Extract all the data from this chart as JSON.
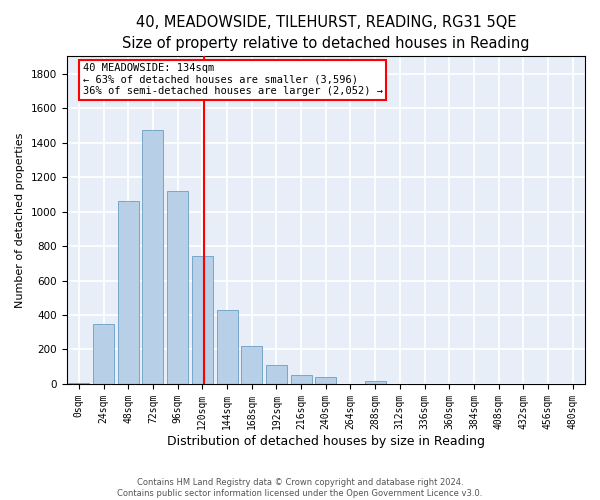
{
  "title1": "40, MEADOWSIDE, TILEHURST, READING, RG31 5QE",
  "title2": "Size of property relative to detached houses in Reading",
  "xlabel": "Distribution of detached houses by size in Reading",
  "ylabel": "Number of detached properties",
  "categories": [
    "0sqm",
    "24sqm",
    "48sqm",
    "72sqm",
    "96sqm",
    "120sqm",
    "144sqm",
    "168sqm",
    "192sqm",
    "216sqm",
    "240sqm",
    "264sqm",
    "288sqm",
    "312sqm",
    "336sqm",
    "360sqm",
    "384sqm",
    "408sqm",
    "432sqm",
    "456sqm",
    "480sqm"
  ],
  "values": [
    5,
    350,
    1060,
    1470,
    1120,
    740,
    430,
    220,
    110,
    50,
    40,
    0,
    20,
    0,
    0,
    0,
    0,
    0,
    0,
    0,
    0
  ],
  "bar_color": "#b8cfe8",
  "bar_edge_color": "#6a9ec5",
  "vline_color": "red",
  "annotation_text": "40 MEADOWSIDE: 134sqm\n← 63% of detached houses are smaller (3,596)\n36% of semi-detached houses are larger (2,052) →",
  "ylim": [
    0,
    1900
  ],
  "yticks": [
    0,
    200,
    400,
    600,
    800,
    1000,
    1200,
    1400,
    1600,
    1800
  ],
  "footer1": "Contains HM Land Registry data © Crown copyright and database right 2024.",
  "footer2": "Contains public sector information licensed under the Open Government Licence v3.0.",
  "bg_color": "#e8eef8",
  "grid_color": "#ffffff",
  "title1_fontsize": 10.5,
  "title2_fontsize": 9.5,
  "xlabel_fontsize": 9,
  "ylabel_fontsize": 8,
  "annotation_fontsize": 7.5,
  "tick_fontsize": 7,
  "ytick_fontsize": 7.5
}
